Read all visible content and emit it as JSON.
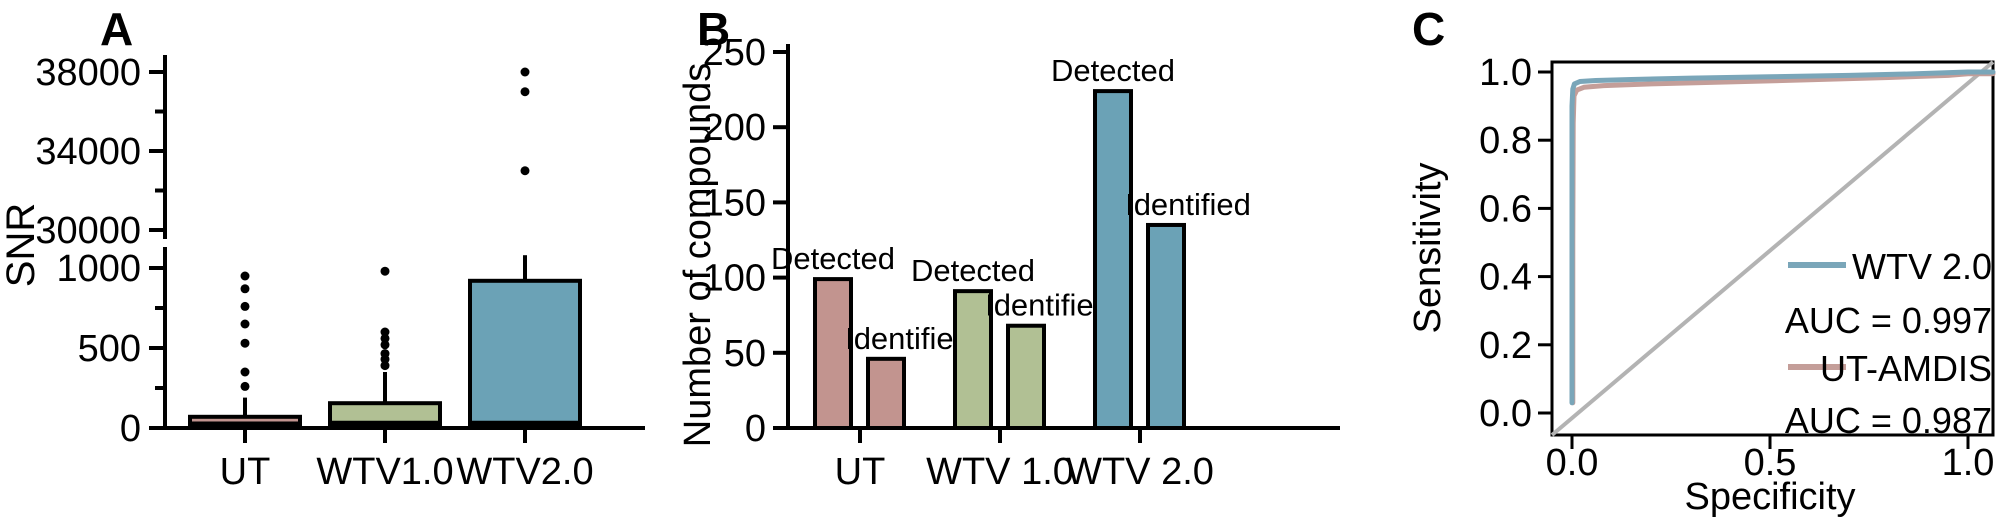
{
  "figure": {
    "background": "#ffffff"
  },
  "chart_data": [
    {
      "panel": "A",
      "type": "boxplot",
      "ylabel": "SNR",
      "categories": [
        "UT",
        "WTV1.0",
        "WTV2.0"
      ],
      "box_colors": [
        "#c2948f",
        "#b1c094",
        "#6ba2b6"
      ],
      "axis_break": {
        "lower_range": [
          0,
          1100
        ],
        "upper_range": [
          29800,
          38900
        ]
      },
      "yticks_lower": [
        0,
        500,
        1000
      ],
      "yticks_lower_minor": [
        250,
        750
      ],
      "yticks_upper": [
        30000,
        34000,
        38000
      ],
      "yticks_upper_minor": [
        32000,
        36000
      ],
      "boxes": [
        {
          "category": "UT",
          "q1": 5,
          "median": 25,
          "q3": 70,
          "whisker_low": 0,
          "whisker_high": 190,
          "outliers": [
            260,
            350,
            530,
            650,
            760,
            870,
            950
          ]
        },
        {
          "category": "WTV1.0",
          "q1": 10,
          "median": 30,
          "q3": 155,
          "whisker_low": 0,
          "whisker_high": 350,
          "outliers": [
            390,
            430,
            465,
            520,
            560,
            600,
            980
          ]
        },
        {
          "category": "WTV2.0",
          "q1": 15,
          "median": 30,
          "q3": 920,
          "whisker_low": 0,
          "whisker_high": 1080,
          "outliers": [
            33000,
            37000,
            38000
          ]
        }
      ]
    },
    {
      "panel": "B",
      "type": "bar",
      "ylabel": "Number of compounds",
      "ylim": [
        0,
        250
      ],
      "yticks": [
        0,
        50,
        100,
        150,
        200,
        250
      ],
      "categories": [
        "UT",
        "WTV 1.0",
        "WTV 2.0"
      ],
      "series": [
        {
          "name": "Detected",
          "values": [
            99,
            91,
            224
          ]
        },
        {
          "name": "Identified",
          "values": [
            46,
            68,
            135
          ]
        }
      ],
      "group_colors": [
        "#c2948f",
        "#b1c094",
        "#6ba2b6"
      ]
    },
    {
      "panel": "C",
      "type": "line",
      "xlabel": "Specificity",
      "ylabel": "Sensitivity",
      "xlim": [
        0,
        1
      ],
      "ylim": [
        0,
        1
      ],
      "xticks": [
        0.0,
        0.5,
        1.0
      ],
      "yticks": [
        0.0,
        0.2,
        0.4,
        0.6,
        0.8,
        1.0
      ],
      "diagonal_reference": {
        "show": true,
        "color": "#b3b3b3"
      },
      "legend_position": "bottom-right",
      "series": [
        {
          "name": "WTV 2.0",
          "auc_label": "AUC = 0.997",
          "color": "#7aa6b9",
          "points": [
            [
              0.0,
              0.03
            ],
            [
              0.0,
              0.3
            ],
            [
              0.0,
              0.7
            ],
            [
              0.0,
              0.9
            ],
            [
              0.002,
              0.95
            ],
            [
              0.006,
              0.965
            ],
            [
              0.02,
              0.972
            ],
            [
              0.06,
              0.975
            ],
            [
              0.15,
              0.978
            ],
            [
              0.3,
              0.982
            ],
            [
              0.5,
              0.986
            ],
            [
              0.7,
              0.99
            ],
            [
              0.85,
              0.994
            ],
            [
              1.0,
              1.0
            ]
          ]
        },
        {
          "name": "UT-AMDIS",
          "auc_label": "AUC = 0.987",
          "color": "#c49e99",
          "points": [
            [
              0.002,
              0.03
            ],
            [
              0.002,
              0.5
            ],
            [
              0.003,
              0.85
            ],
            [
              0.005,
              0.93
            ],
            [
              0.012,
              0.947
            ],
            [
              0.03,
              0.955
            ],
            [
              0.08,
              0.96
            ],
            [
              0.2,
              0.965
            ],
            [
              0.4,
              0.971
            ],
            [
              0.6,
              0.977
            ],
            [
              0.8,
              0.984
            ],
            [
              0.95,
              0.99
            ],
            [
              1.0,
              0.995
            ]
          ]
        }
      ]
    }
  ]
}
